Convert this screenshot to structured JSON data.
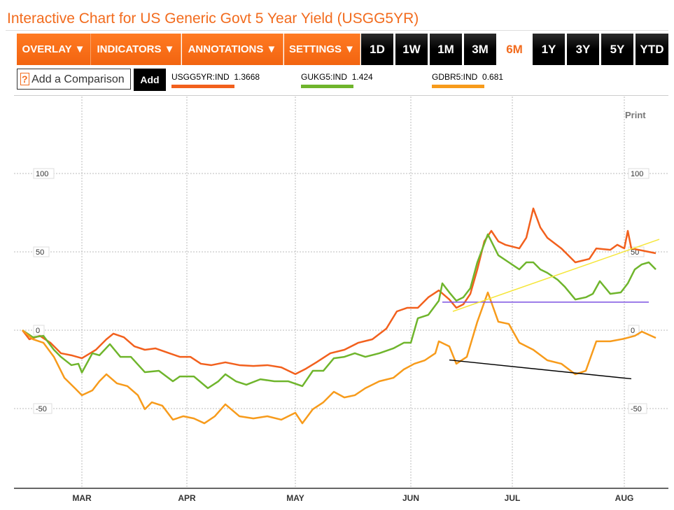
{
  "title": "Interactive Chart for US Generic Govt 5 Year Yield (USGG5YR)",
  "toolbar": {
    "menus": [
      "OVERLAY ▼",
      "INDICATORS ▼",
      "ANNOTATIONS ▼",
      "SETTINGS ▼"
    ],
    "ranges": [
      "1D",
      "1W",
      "1M",
      "3M",
      "6M",
      "1Y",
      "3Y",
      "5Y",
      "YTD"
    ],
    "active_range": "6M"
  },
  "comparison": {
    "help": "?",
    "placeholder": "Add a Comparison",
    "add_label": "Add"
  },
  "legend": [
    {
      "symbol": "USGG5YR:IND",
      "value": "1.3668",
      "color": "#f2601d"
    },
    {
      "symbol": "GUKG5:IND",
      "value": "1.424",
      "color": "#6fb52c"
    },
    {
      "symbol": "GDBR5:IND",
      "value": "0.681",
      "color": "#f79b1b"
    }
  ],
  "print_label": "Print",
  "chart_data": {
    "type": "line",
    "xlim": [
      0,
      181
    ],
    "ylim": [
      -100,
      150
    ],
    "grid": true,
    "x_ticks": [
      {
        "label": "MAR",
        "day": 17
      },
      {
        "label": "APR",
        "day": 47
      },
      {
        "label": "MAY",
        "day": 78
      },
      {
        "label": "JUN",
        "day": 111
      },
      {
        "label": "JUL",
        "day": 140
      },
      {
        "label": "AUG",
        "day": 172
      }
    ],
    "y_ticks": [
      100,
      50,
      0,
      -50
    ],
    "series": [
      {
        "name": "USGG5YR:IND",
        "color": "#f2601d",
        "points": [
          [
            0,
            0
          ],
          [
            2,
            -5.8
          ],
          [
            5,
            -3.6
          ],
          [
            8,
            -8
          ],
          [
            11,
            -14.7
          ],
          [
            14,
            -16
          ],
          [
            17,
            -17.9
          ],
          [
            21,
            -12.5
          ],
          [
            24,
            -5.8
          ],
          [
            26,
            -2.2
          ],
          [
            29,
            -4.5
          ],
          [
            32,
            -10.3
          ],
          [
            35,
            -12.5
          ],
          [
            38,
            -11.6
          ],
          [
            42,
            -14.7
          ],
          [
            45,
            -17
          ],
          [
            48,
            -17
          ],
          [
            51,
            -21.4
          ],
          [
            54,
            -22.3
          ],
          [
            58,
            -20.5
          ],
          [
            62,
            -22.3
          ],
          [
            66,
            -22.8
          ],
          [
            70,
            -22.3
          ],
          [
            74,
            -23.7
          ],
          [
            78,
            -28
          ],
          [
            81,
            -24.6
          ],
          [
            84,
            -20.5
          ],
          [
            88,
            -14.7
          ],
          [
            92,
            -12.5
          ],
          [
            96,
            -8
          ],
          [
            100,
            -5.8
          ],
          [
            104,
            1
          ],
          [
            107,
            12
          ],
          [
            110,
            14.3
          ],
          [
            113,
            14.3
          ],
          [
            116,
            21
          ],
          [
            119,
            25.4
          ],
          [
            122,
            19.6
          ],
          [
            124,
            14.3
          ],
          [
            126,
            16.5
          ],
          [
            128,
            23.2
          ],
          [
            130,
            38.8
          ],
          [
            132,
            56.7
          ],
          [
            134,
            63.4
          ],
          [
            136,
            56.7
          ],
          [
            138,
            54.5
          ],
          [
            142,
            52.2
          ],
          [
            144,
            59
          ],
          [
            146,
            77.7
          ],
          [
            148,
            65.6
          ],
          [
            150,
            59
          ],
          [
            154,
            52.2
          ],
          [
            158,
            43.3
          ],
          [
            162,
            45.5
          ],
          [
            164,
            52.2
          ],
          [
            168,
            51.3
          ],
          [
            170,
            54.5
          ],
          [
            172,
            52.2
          ],
          [
            173,
            63.4
          ],
          [
            174,
            52.2
          ],
          [
            177,
            50.9
          ],
          [
            181,
            49.1
          ]
        ]
      },
      {
        "name": "GUKG5:IND",
        "color": "#6fb52c",
        "points": [
          [
            0,
            0
          ],
          [
            3,
            -4.5
          ],
          [
            6,
            -3.6
          ],
          [
            9,
            -12.5
          ],
          [
            11,
            -17
          ],
          [
            14,
            -22.3
          ],
          [
            16,
            -21.4
          ],
          [
            17,
            -27
          ],
          [
            20,
            -14.7
          ],
          [
            22,
            -16
          ],
          [
            25,
            -8.9
          ],
          [
            28,
            -17
          ],
          [
            31,
            -17
          ],
          [
            35,
            -26.8
          ],
          [
            39,
            -25.9
          ],
          [
            43,
            -32.6
          ],
          [
            45,
            -29.5
          ],
          [
            49,
            -29.5
          ],
          [
            53,
            -37
          ],
          [
            56,
            -32.6
          ],
          [
            58,
            -28.1
          ],
          [
            61,
            -32.6
          ],
          [
            64,
            -34.8
          ],
          [
            68,
            -31.3
          ],
          [
            72,
            -32.6
          ],
          [
            76,
            -32.6
          ],
          [
            80,
            -35.7
          ],
          [
            83,
            -25.9
          ],
          [
            86,
            -25.9
          ],
          [
            89,
            -17.9
          ],
          [
            92,
            -17
          ],
          [
            95,
            -14.7
          ],
          [
            98,
            -17
          ],
          [
            102,
            -14.7
          ],
          [
            106,
            -11.6
          ],
          [
            109,
            -8
          ],
          [
            111,
            -8
          ],
          [
            113,
            7.6
          ],
          [
            116,
            9.8
          ],
          [
            119,
            18.8
          ],
          [
            120,
            29.9
          ],
          [
            122,
            24.1
          ],
          [
            124,
            18.8
          ],
          [
            126,
            21
          ],
          [
            128,
            26.8
          ],
          [
            130,
            43.3
          ],
          [
            133,
            61.2
          ],
          [
            136,
            47.8
          ],
          [
            139,
            43.3
          ],
          [
            142,
            38.8
          ],
          [
            144,
            43.3
          ],
          [
            146,
            43.3
          ],
          [
            148,
            38.8
          ],
          [
            150,
            36.6
          ],
          [
            153,
            32.1
          ],
          [
            155,
            27.7
          ],
          [
            158,
            19.6
          ],
          [
            161,
            21
          ],
          [
            163,
            23.2
          ],
          [
            165,
            31.3
          ],
          [
            168,
            23.2
          ],
          [
            171,
            24.1
          ],
          [
            173,
            29.9
          ],
          [
            175,
            38.8
          ],
          [
            177,
            42
          ],
          [
            179,
            43.3
          ],
          [
            181,
            38.8
          ]
        ]
      },
      {
        "name": "GDBR5:IND",
        "color": "#f79b1b",
        "points": [
          [
            0,
            0
          ],
          [
            3,
            -5.8
          ],
          [
            6,
            -8
          ],
          [
            9,
            -17
          ],
          [
            12,
            -30.4
          ],
          [
            15,
            -37
          ],
          [
            17,
            -41.5
          ],
          [
            20,
            -38.4
          ],
          [
            22,
            -32.6
          ],
          [
            24,
            -28.1
          ],
          [
            27,
            -33.9
          ],
          [
            30,
            -35.7
          ],
          [
            33,
            -41.5
          ],
          [
            35,
            -50.4
          ],
          [
            37,
            -46
          ],
          [
            40,
            -48.2
          ],
          [
            43,
            -57.1
          ],
          [
            46,
            -54.9
          ],
          [
            49,
            -56.3
          ],
          [
            52,
            -59.4
          ],
          [
            55,
            -54.9
          ],
          [
            58,
            -47.3
          ],
          [
            62,
            -54.9
          ],
          [
            66,
            -56.3
          ],
          [
            70,
            -54.9
          ],
          [
            74,
            -57.1
          ],
          [
            78,
            -52.7
          ],
          [
            80,
            -59.4
          ],
          [
            83,
            -50.4
          ],
          [
            86,
            -46
          ],
          [
            89,
            -39.3
          ],
          [
            92,
            -42.9
          ],
          [
            95,
            -41.5
          ],
          [
            98,
            -37
          ],
          [
            102,
            -32.6
          ],
          [
            106,
            -30.4
          ],
          [
            109,
            -25
          ],
          [
            112,
            -21.4
          ],
          [
            115,
            -19.2
          ],
          [
            118,
            -14.7
          ],
          [
            119,
            -7.1
          ],
          [
            122,
            -10.3
          ],
          [
            124,
            -21.4
          ],
          [
            127,
            -17
          ],
          [
            130,
            5.4
          ],
          [
            133,
            24.1
          ],
          [
            136,
            5.4
          ],
          [
            139,
            4
          ],
          [
            142,
            -8
          ],
          [
            146,
            -12.5
          ],
          [
            150,
            -19.2
          ],
          [
            154,
            -21.4
          ],
          [
            158,
            -28.1
          ],
          [
            161,
            -25.9
          ],
          [
            164,
            -7.1
          ],
          [
            168,
            -7.1
          ],
          [
            172,
            -5.4
          ],
          [
            175,
            -3.6
          ],
          [
            177,
            -0.9
          ],
          [
            181,
            -4.9
          ]
        ]
      }
    ],
    "annotations": [
      {
        "type": "horizontal-line",
        "color": "#7b52e0",
        "from": [
          120,
          17.9
        ],
        "to": [
          179,
          17.9
        ]
      },
      {
        "type": "trend-line",
        "color": "#f5e63a",
        "from": [
          123,
          12
        ],
        "to": [
          182,
          58
        ]
      },
      {
        "type": "trend-line",
        "color": "#000000",
        "from": [
          122,
          -19
        ],
        "to": [
          174,
          -31
        ]
      }
    ]
  }
}
